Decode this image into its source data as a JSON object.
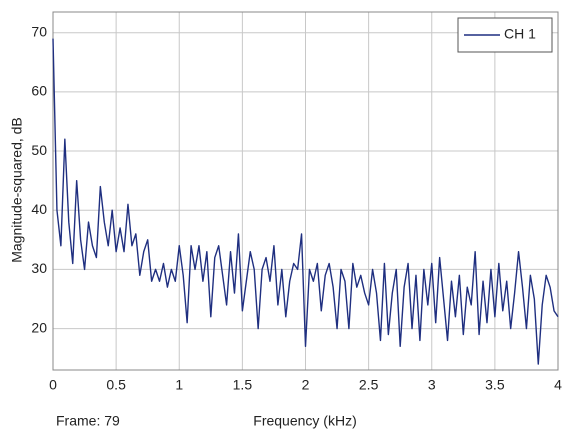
{
  "chart_data": {
    "type": "line",
    "xlabel": "Frequency (kHz)",
    "ylabel": "Magnitude-squared, dB",
    "annotation": "Frame: 79",
    "xlim": [
      0,
      4
    ],
    "xticks": [
      0,
      0.5,
      1,
      1.5,
      2,
      2.5,
      3,
      3.5,
      4
    ],
    "ylim": [
      13,
      73.5
    ],
    "yticks": [
      20,
      30,
      40,
      50,
      60,
      70
    ],
    "grid": true,
    "legend": "upper right",
    "x": [
      0,
      0.03125,
      0.0625,
      0.09375,
      0.125,
      0.15625,
      0.1875,
      0.21875,
      0.25,
      0.28125,
      0.3125,
      0.34375,
      0.375,
      0.40625,
      0.4375,
      0.46875,
      0.5,
      0.53125,
      0.5625,
      0.59375,
      0.625,
      0.65625,
      0.6875,
      0.71875,
      0.75,
      0.78125,
      0.8125,
      0.84375,
      0.875,
      0.90625,
      0.9375,
      0.96875,
      1,
      1.03125,
      1.0625,
      1.09375,
      1.125,
      1.15625,
      1.1875,
      1.21875,
      1.25,
      1.28125,
      1.3125,
      1.34375,
      1.375,
      1.40625,
      1.4375,
      1.46875,
      1.5,
      1.53125,
      1.5625,
      1.59375,
      1.625,
      1.65625,
      1.6875,
      1.71875,
      1.75,
      1.78125,
      1.8125,
      1.84375,
      1.875,
      1.90625,
      1.9375,
      1.96875,
      2,
      2.03125,
      2.0625,
      2.09375,
      2.125,
      2.15625,
      2.1875,
      2.21875,
      2.25,
      2.28125,
      2.3125,
      2.34375,
      2.375,
      2.40625,
      2.4375,
      2.46875,
      2.5,
      2.53125,
      2.5625,
      2.59375,
      2.625,
      2.65625,
      2.6875,
      2.71875,
      2.75,
      2.78125,
      2.8125,
      2.84375,
      2.875,
      2.90625,
      2.9375,
      2.96875,
      3,
      3.03125,
      3.0625,
      3.09375,
      3.125,
      3.15625,
      3.1875,
      3.21875,
      3.25,
      3.28125,
      3.3125,
      3.34375,
      3.375,
      3.40625,
      3.4375,
      3.46875,
      3.5,
      3.53125,
      3.5625,
      3.59375,
      3.625,
      3.65625,
      3.6875,
      3.71875,
      3.75,
      3.78125,
      3.8125,
      3.84375,
      3.875,
      3.90625,
      3.9375,
      3.96875,
      4
    ],
    "series": [
      {
        "name": "CH 1",
        "color": "#1f2f80",
        "values": [
          69,
          40,
          34,
          52,
          38,
          31,
          45,
          35,
          30,
          38,
          34,
          32,
          44,
          38,
          34,
          40,
          33,
          37,
          33,
          41,
          34,
          36,
          29,
          33,
          35,
          28,
          30,
          28,
          31,
          27,
          30,
          28,
          34,
          29,
          21,
          34,
          30,
          34,
          28,
          33,
          22,
          32,
          34,
          29,
          24,
          33,
          26,
          36,
          23,
          28,
          33,
          30,
          20,
          30,
          32,
          28,
          34,
          24,
          30,
          22,
          28,
          31,
          30,
          36,
          17,
          30,
          28,
          31,
          23,
          29,
          31,
          27,
          20,
          30,
          28,
          20,
          31,
          27,
          29,
          26,
          24,
          30,
          26,
          18,
          31,
          19,
          26,
          30,
          17,
          27,
          31,
          20,
          29,
          18,
          30,
          24,
          31,
          21,
          32,
          25,
          18,
          28,
          22,
          29,
          19,
          27,
          24,
          33,
          19,
          28,
          21,
          30,
          22,
          31,
          23,
          28,
          20,
          26,
          33,
          27,
          20,
          29,
          25,
          14,
          24,
          29,
          27,
          23,
          22
        ]
      }
    ]
  }
}
